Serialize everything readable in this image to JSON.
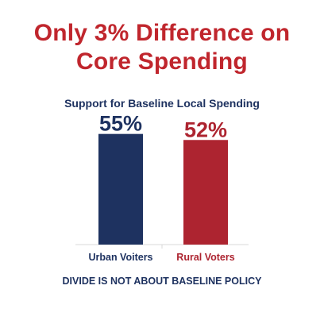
{
  "title_line1": "Only 3% Difference on",
  "title_line2": "Core Spending",
  "footer": "DIVIDE IS NOT ABOUT BASELINE POLICY",
  "colors": {
    "title": "#c0262d",
    "text_dark": "#1e3260",
    "urban": "#1e3260",
    "rural": "#ad2430",
    "axis": "#d9d9d9"
  },
  "chart_data": {
    "type": "bar",
    "title": "Support for Baseline Local Spending",
    "categories": [
      "Urban Voiters",
      "Rural Voters"
    ],
    "values": [
      55,
      52
    ],
    "value_labels": [
      "55%",
      "52%"
    ],
    "unit": "%",
    "ylim": [
      0,
      60
    ],
    "grid": false,
    "legend": "none"
  }
}
